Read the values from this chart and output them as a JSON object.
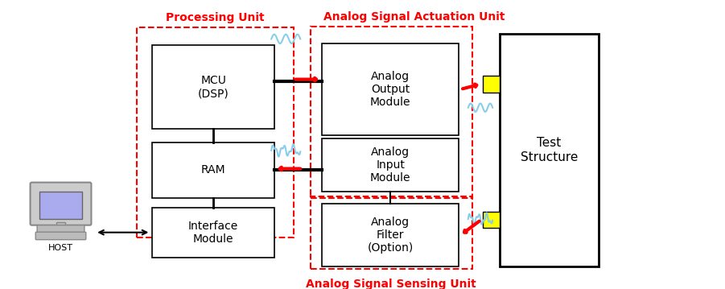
{
  "bg_color": "#ffffff",
  "title_color": "#ff0000",
  "box_edge_color": "#000000",
  "dashed_box_color": "#ff0000",
  "arrow_color": "#ff0000",
  "signal_color": "#add8e6",
  "yellow_color": "#ffff00",
  "gray_color": "#888888",
  "blue_screen_color": "#aaaaee",
  "processing_unit_label": "Processing Unit",
  "actuation_unit_label": "Analog Signal Actuation Unit",
  "sensing_unit_label": "Analog Signal Sensing Unit",
  "mcu_label": "MCU\n(DSP)",
  "ram_label": "RAM",
  "interface_label": "Interface\nModule",
  "host_label": "HOST",
  "analog_output_label": "Analog\nOutput\nModule",
  "analog_input_label": "Analog\nInput\nModule",
  "analog_filter_label": "Analog\nFilter\n(Option)",
  "test_structure_label": "Test\nStructure",
  "fig_width": 9.01,
  "fig_height": 3.59
}
